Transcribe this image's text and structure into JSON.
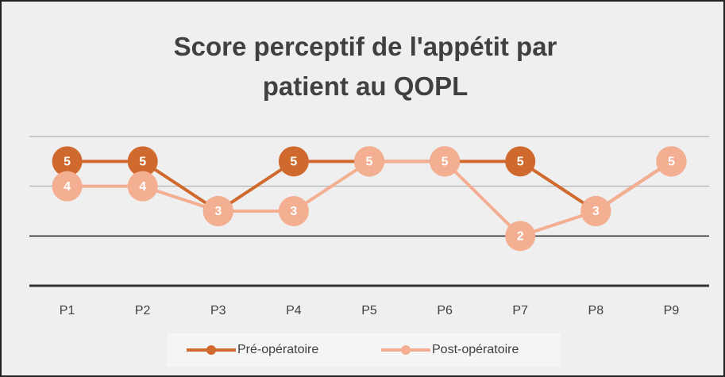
{
  "chart_data": {
    "type": "line",
    "title": "Score perceptif de l'appétit par patient au QOPL",
    "categories": [
      "P1",
      "P2",
      "P3",
      "P4",
      "P5",
      "P6",
      "P7",
      "P8",
      "P9"
    ],
    "series": [
      {
        "name": "Pré-opératoire",
        "color": "#d0692e",
        "values": [
          5,
          5,
          3,
          5,
          5,
          5,
          5,
          3,
          5
        ]
      },
      {
        "name": "Post-opératoire",
        "color": "#f4ae92",
        "values": [
          4,
          4,
          3,
          3,
          5,
          5,
          2,
          3,
          5
        ]
      }
    ],
    "ylim": [
      0,
      6
    ],
    "yticks": [
      0,
      2,
      4,
      6
    ],
    "grid": true,
    "legend": "bottom"
  }
}
